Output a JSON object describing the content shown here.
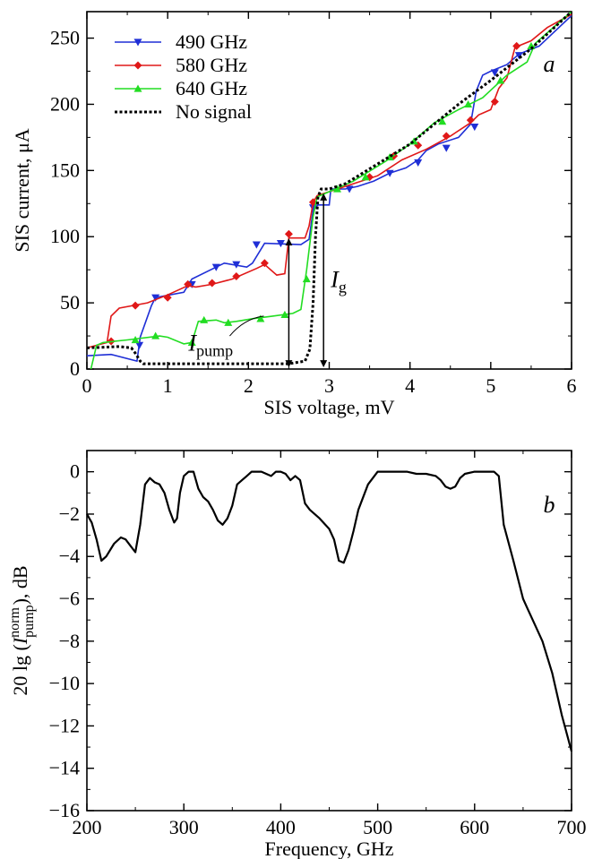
{
  "chart_data": [
    {
      "type": "line",
      "panel_label": "a",
      "xlabel": "SIS voltage, mV",
      "ylabel": "SIS current, μA",
      "xlim": [
        0,
        6
      ],
      "ylim": [
        0,
        270
      ],
      "xticks": [
        0,
        1,
        2,
        3,
        4,
        5,
        6
      ],
      "yticks": [
        0,
        50,
        100,
        150,
        200,
        250
      ],
      "legend_position": "top-left",
      "annotations": [
        {
          "main": "I",
          "sub": "pump",
          "x": 2.5,
          "y_from": 4,
          "y_to": 96
        },
        {
          "main": "I",
          "sub": "g",
          "x": 2.93,
          "y_from": 4,
          "y_to": 130
        }
      ],
      "series": [
        {
          "name": "490 GHz",
          "color": "#1f2fd6",
          "marker": "triangle-down",
          "x": [
            0,
            0.3,
            0.62,
            0.66,
            0.8,
            0.85,
            1.2,
            1.3,
            1.6,
            1.7,
            1.98,
            2.05,
            2.2,
            2.65,
            2.75,
            2.8,
            2.86,
            3.0,
            3.02,
            3.2,
            3.35,
            3.55,
            3.75,
            3.95,
            4.1,
            4.2,
            4.35,
            4.6,
            4.75,
            4.82,
            4.9,
            5.0,
            5.2,
            5.35,
            5.6,
            6.0
          ],
          "y": [
            10,
            11,
            6,
            24,
            48,
            54,
            58,
            68,
            77,
            80,
            77,
            80,
            95,
            94,
            98,
            120,
            124,
            124,
            136,
            136,
            138,
            142,
            148,
            152,
            158,
            165,
            170,
            175,
            185,
            210,
            222,
            225,
            230,
            238,
            244,
            267
          ],
          "marker_x": [
            0.65,
            0.85,
            1.3,
            1.6,
            1.85,
            2.1,
            2.4,
            2.8,
            3.25,
            3.75,
            4.1,
            4.45,
            4.8,
            5.05,
            5.35
          ],
          "marker_y": [
            18,
            54,
            64,
            77,
            79,
            94,
            95,
            122,
            136,
            148,
            156,
            167,
            183,
            224,
            237
          ]
        },
        {
          "name": "580 GHz",
          "color": "#e01818",
          "marker": "diamond",
          "x": [
            0,
            0.25,
            0.3,
            0.4,
            0.75,
            1.0,
            1.25,
            1.35,
            1.55,
            1.8,
            2.1,
            2.2,
            2.35,
            2.45,
            2.5,
            2.7,
            2.75,
            2.8,
            2.85,
            3.0,
            3.3,
            3.6,
            3.9,
            4.2,
            4.5,
            4.75,
            4.85,
            5.0,
            5.1,
            5.2,
            5.3,
            5.5,
            5.7,
            6.0
          ],
          "y": [
            16,
            20,
            40,
            46,
            50,
            56,
            63,
            62,
            64,
            68,
            76,
            79,
            71,
            72,
            99,
            99,
            108,
            126,
            131,
            134,
            140,
            146,
            158,
            166,
            176,
            186,
            192,
            196,
            212,
            220,
            243,
            248,
            258,
            268
          ],
          "marker_x": [
            0.3,
            0.6,
            1.0,
            1.25,
            1.55,
            1.85,
            2.2,
            2.5,
            2.8,
            3.5,
            3.8,
            4.1,
            4.45,
            4.75,
            5.05,
            5.32
          ],
          "marker_y": [
            21,
            48,
            54,
            64,
            65,
            70,
            80,
            102,
            126,
            145,
            161,
            169,
            176,
            188,
            202,
            244
          ]
        },
        {
          "name": "640 GHz",
          "color": "#22dd22",
          "marker": "triangle-up",
          "x": [
            0.05,
            0.12,
            0.2,
            0.5,
            0.9,
            1.0,
            1.2,
            1.3,
            1.38,
            1.6,
            1.7,
            1.85,
            2.05,
            2.3,
            2.55,
            2.65,
            2.72,
            2.8,
            2.85,
            3.0,
            3.3,
            3.7,
            4.0,
            4.3,
            4.6,
            4.9,
            5.2,
            5.45,
            5.55,
            6.0
          ],
          "y": [
            0,
            18,
            20,
            22,
            25,
            24,
            19,
            20,
            36,
            37,
            35,
            36,
            38,
            40,
            42,
            45,
            75,
            115,
            130,
            134,
            142,
            157,
            170,
            186,
            196,
            205,
            222,
            232,
            246,
            270
          ],
          "marker_x": [
            0.6,
            0.85,
            1.3,
            1.45,
            1.75,
            2.15,
            2.45,
            2.72,
            3.1,
            3.45,
            3.75,
            4.05,
            4.4,
            4.72,
            5.12,
            5.5
          ],
          "marker_y": [
            22,
            25,
            20,
            37,
            35,
            38,
            41,
            68,
            136,
            145,
            160,
            172,
            187,
            200,
            218,
            244
          ]
        },
        {
          "name": "No signal",
          "color": "#000000",
          "marker": "none",
          "x": [
            0,
            0.4,
            0.55,
            0.6,
            0.66,
            0.7,
            1.0,
            2.0,
            2.5,
            2.7,
            2.76,
            2.8,
            2.83,
            2.86,
            2.9,
            3.0,
            3.2,
            4.0,
            4.6,
            5.0,
            5.5,
            6.0
          ],
          "y": [
            16,
            17,
            16,
            12,
            6,
            4,
            4,
            4,
            4,
            6,
            15,
            50,
            100,
            130,
            136,
            136,
            140,
            170,
            200,
            218,
            242,
            270
          ]
        }
      ]
    },
    {
      "type": "line",
      "panel_label": "b",
      "xlabel": "Frequency, GHz",
      "ylabel": "20 lg (I norm pump), dB",
      "ylabel_parts": {
        "prefix": "20 lg (",
        "main": "I",
        "sup": "norm",
        "sub": "pump",
        "suffix": "), dB"
      },
      "xlim": [
        200,
        700
      ],
      "ylim": [
        -16,
        1
      ],
      "xticks": [
        200,
        300,
        400,
        500,
        600,
        700
      ],
      "yticks": [
        0,
        -2,
        -4,
        -6,
        -8,
        -10,
        -12,
        -14,
        -16
      ],
      "series": [
        {
          "name": "",
          "color": "#000000",
          "x": [
            200,
            205,
            210,
            215,
            220,
            228,
            235,
            240,
            245,
            250,
            255,
            260,
            265,
            270,
            275,
            280,
            285,
            290,
            293,
            296,
            300,
            305,
            310,
            315,
            320,
            325,
            330,
            335,
            340,
            345,
            350,
            355,
            360,
            365,
            370,
            375,
            380,
            390,
            395,
            400,
            405,
            410,
            415,
            420,
            425,
            430,
            440,
            450,
            455,
            460,
            465,
            470,
            475,
            480,
            490,
            500,
            505,
            510,
            520,
            530,
            540,
            550,
            560,
            565,
            570,
            575,
            580,
            585,
            590,
            600,
            610,
            620,
            625,
            630,
            640,
            650,
            655,
            660,
            670,
            680,
            690,
            700
          ],
          "y": [
            -2.0,
            -2.4,
            -3.2,
            -4.2,
            -4.0,
            -3.4,
            -3.1,
            -3.2,
            -3.5,
            -3.8,
            -2.5,
            -0.6,
            -0.3,
            -0.5,
            -0.6,
            -1.0,
            -1.8,
            -2.4,
            -2.2,
            -1.0,
            -0.2,
            0.0,
            0.0,
            -0.8,
            -1.2,
            -1.4,
            -1.8,
            -2.3,
            -2.5,
            -2.2,
            -1.6,
            -0.6,
            -0.4,
            -0.2,
            0.0,
            0.0,
            0.0,
            -0.2,
            0.0,
            0.0,
            -0.1,
            -0.4,
            -0.2,
            -0.4,
            -1.5,
            -1.8,
            -2.2,
            -2.7,
            -3.2,
            -4.2,
            -4.3,
            -3.7,
            -2.8,
            -1.8,
            -0.6,
            0.0,
            0.0,
            0.0,
            0.0,
            0.0,
            -0.1,
            -0.1,
            -0.2,
            -0.4,
            -0.7,
            -0.8,
            -0.7,
            -0.3,
            -0.1,
            0.0,
            0.0,
            0.0,
            -0.2,
            -2.5,
            -4.2,
            -6.0,
            -6.5,
            -7.0,
            -8.0,
            -9.5,
            -11.5,
            -13.2
          ]
        }
      ]
    }
  ]
}
